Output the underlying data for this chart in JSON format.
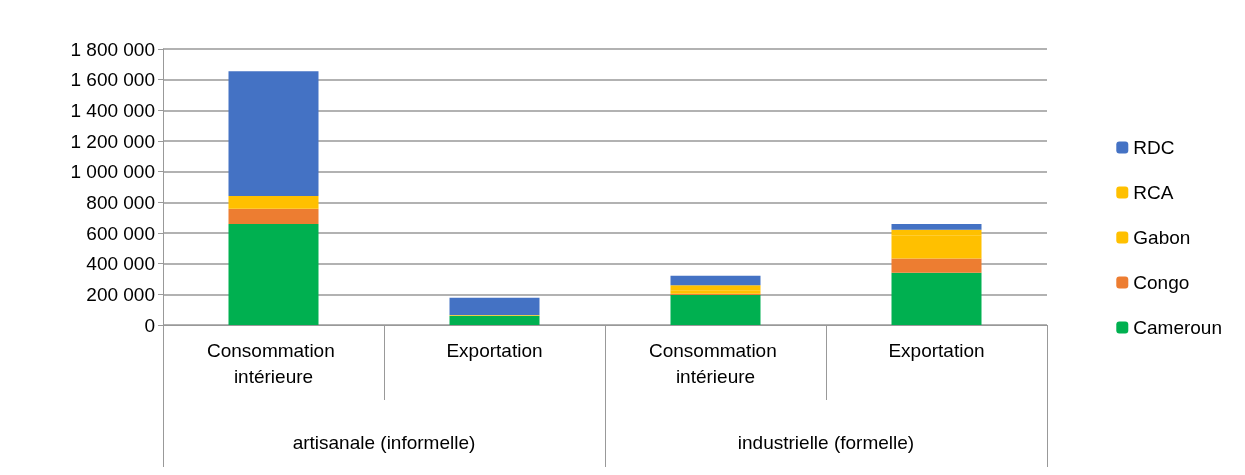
{
  "chart_data": {
    "type": "bar",
    "stacked": true,
    "categories": [
      "Consommation intérieure",
      "Exportation",
      "Consommation intérieure",
      "Exportation"
    ],
    "annotations": [
      "artisanale (informelle)",
      "industrielle (formelle)"
    ],
    "series": [
      {
        "name": "Cameroun",
        "color": "#00b050",
        "values": [
          659000,
          60000,
          196000,
          341000
        ]
      },
      {
        "name": "Congo",
        "color": "#ed7d31",
        "values": [
          99000,
          0,
          8000,
          92000
        ]
      },
      {
        "name": "Gabon",
        "color": "#ffc000",
        "values": [
          50000,
          3000,
          23000,
          149000
        ]
      },
      {
        "name": "RCA",
        "color": "#ffc000",
        "values": [
          34000,
          3000,
          32000,
          40000
        ]
      },
      {
        "name": "RDC",
        "color": "#4472c4",
        "values": [
          813000,
          111000,
          63000,
          37000
        ]
      }
    ],
    "ylim": [
      0,
      1800000
    ],
    "yticks": [
      0,
      {
        "value": 200000,
        "label": "200 000"
      },
      {
        "value": 400000,
        "label": "400 000"
      },
      {
        "value": 600000,
        "label": "600 000"
      },
      {
        "value": 800000,
        "label": "800 000"
      },
      {
        "value": 1000000,
        "label": "1 000 000"
      },
      {
        "value": 1200000,
        "label": "1 200 000"
      },
      {
        "value": 1400000,
        "label": "1 400 000"
      },
      {
        "value": 1600000,
        "label": "1 600 000"
      },
      {
        "value": 1800000,
        "label": "1 800 000"
      }
    ],
    "grid": "y",
    "legend": "right"
  }
}
